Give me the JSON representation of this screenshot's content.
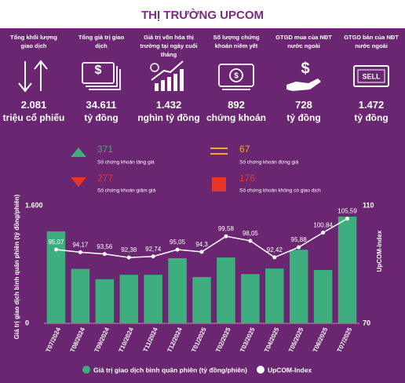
{
  "header": {
    "title": "THỊ TRƯỜNG UPCOM"
  },
  "stats": [
    {
      "label": "Tổng khối lượng giao dịch",
      "value": "2.081",
      "unit": "triệu cổ phiếu"
    },
    {
      "label": "Tổng giá trị giao dịch",
      "value": "34.611",
      "unit": "tỷ đồng"
    },
    {
      "label": "Giá trị vốn hóa thị trường tại ngày cuối tháng",
      "value": "1.432",
      "unit": "nghìn tỷ đồng"
    },
    {
      "label": "Số lượng chứng khoán niêm yết",
      "value": "892",
      "unit": "chứng khoán"
    },
    {
      "label": "GTGD mua của NĐT nước ngoài",
      "value": "728",
      "unit": "tỷ đồng"
    },
    {
      "label": "GTGD bán của NĐT nước ngoài",
      "value": "1.472",
      "unit": "tỷ đồng"
    }
  ],
  "breadth": [
    {
      "value": "371",
      "label": "Số chứng khoán tăng giá"
    },
    {
      "value": "67",
      "label": "Số chứng khoán đứng giá"
    },
    {
      "value": "277",
      "label": "Số chứng khoán giảm giá"
    },
    {
      "value": "176",
      "label": "Số chứng khoán không có giao dịch"
    }
  ],
  "chart_data": {
    "type": "bar",
    "categories": [
      "T07/2024",
      "T08/2024",
      "T09/2024",
      "T10/2024",
      "T11/2024",
      "T12/2024",
      "T01/2025",
      "T02/2025",
      "T03/2025",
      "T04/2025",
      "T05/2025",
      "T06/2025",
      "T07/2025"
    ],
    "series": [
      {
        "name": "Giá trị giao dịch bình quân phiên (tỷ đồng/phiên)",
        "type": "bar",
        "color": "#3fae7f",
        "values": [
          1250,
          740,
          600,
          660,
          660,
          885,
          630,
          895,
          670,
          745,
          1000,
          725,
          1450
        ]
      },
      {
        "name": "UpCOM-Index",
        "type": "line",
        "axis": "y2",
        "color": "#ffffff",
        "values": [
          95.07,
          94.17,
          93.56,
          92.38,
          92.74,
          95.05,
          94.3,
          99.58,
          98.05,
          92.42,
          95.88,
          100.84,
          105.59
        ],
        "value_labels": [
          "95,07",
          "94,17",
          "93,56",
          "92,38",
          "92,74",
          "95,05",
          "94,3",
          "99,58",
          "98,05",
          "92,42",
          "95,88",
          "100,84",
          "105,59"
        ]
      }
    ],
    "ylabel": "Giá trị giao dịch bình quân phiên (tỷ đồng/phiên)",
    "y2label": "UpCOM-Index",
    "ylim": [
      0,
      1600
    ],
    "yticks": [
      0,
      {
        "value": 1600,
        "label": "1.600"
      }
    ],
    "y2lim": [
      70,
      110
    ],
    "y2ticks": [
      70,
      110
    ]
  }
}
